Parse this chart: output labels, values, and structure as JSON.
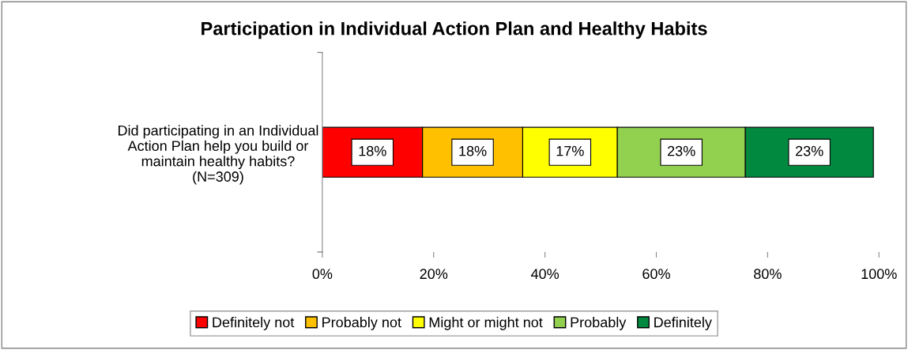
{
  "chart_data": {
    "type": "bar",
    "orientation": "horizontal",
    "stacked": true,
    "title": "Participation in Individual Action Plan and Healthy Habits",
    "categories": [
      "Did participating in an Individual\nAction Plan help you build or\nmaintain healthy habits?\n(N=309)"
    ],
    "series": [
      {
        "name": "Definitely not",
        "color": "#ff0000",
        "values": [
          18
        ],
        "value_labels": [
          "18%"
        ]
      },
      {
        "name": "Probably not",
        "color": "#ffc000",
        "values": [
          18
        ],
        "value_labels": [
          "18%"
        ]
      },
      {
        "name": "Might or might not",
        "color": "#ffff00",
        "values": [
          17
        ],
        "value_labels": [
          "17%"
        ]
      },
      {
        "name": "Probably",
        "color": "#92d050",
        "values": [
          23
        ],
        "value_labels": [
          "23%"
        ]
      },
      {
        "name": "Definitely",
        "color": "#00893f",
        "values": [
          23
        ],
        "value_labels": [
          "23%"
        ]
      }
    ],
    "xlim": [
      0,
      100
    ],
    "xticks": [
      {
        "value": 0,
        "label": "0%"
      },
      {
        "value": 20,
        "label": "20%"
      },
      {
        "value": 40,
        "label": "40%"
      },
      {
        "value": 60,
        "label": "60%"
      },
      {
        "value": 80,
        "label": "80%"
      },
      {
        "value": 100,
        "label": "100%"
      }
    ],
    "grid": false,
    "legend": "bottom"
  }
}
